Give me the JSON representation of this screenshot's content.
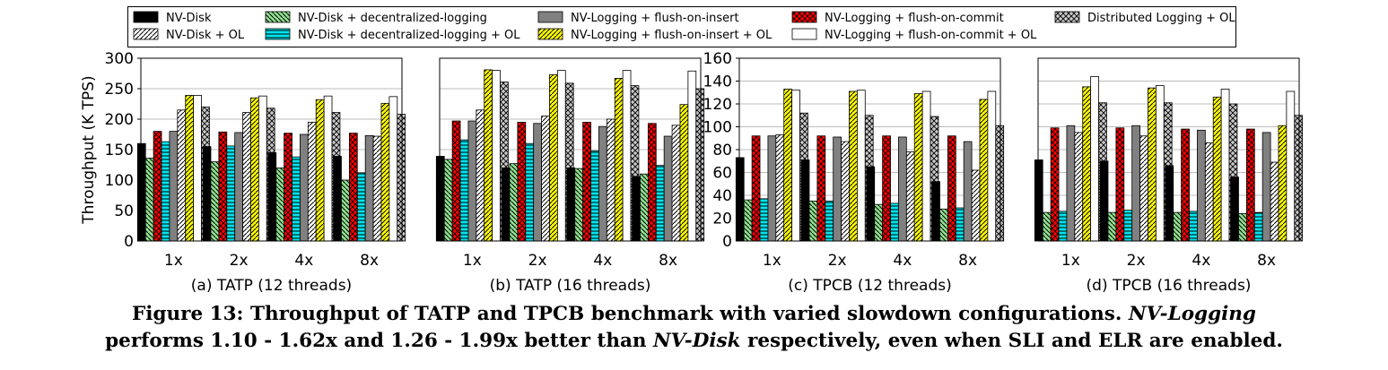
{
  "legend": {
    "items": [
      {
        "label": "NV-Disk",
        "fill": "#000000",
        "pattern": "solid"
      },
      {
        "label": "NV-Disk + OL",
        "fill": "#ffffff",
        "pattern": "diag-r"
      },
      {
        "label": "NV-Disk + decentralized-logging",
        "fill": "#90e090",
        "pattern": "diag-l"
      },
      {
        "label": "NV-Disk + decentralized-logging + OL",
        "fill": "#00e5ee",
        "pattern": "horiz"
      },
      {
        "label": "NV-Logging + flush-on-insert",
        "fill": "#808080",
        "pattern": "solid"
      },
      {
        "label": "NV-Logging + flush-on-insert + OL",
        "fill": "#ffff00",
        "pattern": "diag-r"
      },
      {
        "label": "NV-Logging + flush-on-commit",
        "fill": "#ff0000",
        "pattern": "cross"
      },
      {
        "label": "NV-Logging + flush-on-commit + OL",
        "fill": "#ffffff",
        "pattern": "solid"
      },
      {
        "label": "Distributed Logging + OL",
        "fill": "#c8c8c8",
        "pattern": "cross"
      }
    ]
  },
  "chart_data": [
    {
      "type": "bar",
      "title": "(a) TATP (12 threads)",
      "ylabel": "Throughput (K TPS)",
      "categories": [
        "1x",
        "2x",
        "4x",
        "8x"
      ],
      "ylim": [
        0,
        300
      ],
      "yticks": [
        "0",
        "50",
        "100",
        "150",
        "200",
        "250",
        "300"
      ],
      "grid": true,
      "series": [
        {
          "name": "NV-Disk",
          "values": [
            160,
            155,
            145,
            139
          ]
        },
        {
          "name": "NV-Disk + decentralized-logging",
          "values": [
            136,
            130,
            120,
            100
          ]
        },
        {
          "name": "NV-Logging + flush-on-commit",
          "values": [
            180,
            179,
            177,
            177
          ]
        },
        {
          "name": "NV-Disk + decentralized-logging + OL",
          "values": [
            163,
            156,
            138,
            112
          ]
        },
        {
          "name": "NV-Logging + flush-on-insert",
          "values": [
            180,
            178,
            175,
            173
          ]
        },
        {
          "name": "NV-Disk + OL",
          "values": [
            215,
            211,
            195,
            172
          ]
        },
        {
          "name": "NV-Logging + flush-on-insert + OL",
          "values": [
            239,
            235,
            232,
            226
          ]
        },
        {
          "name": "NV-Logging + flush-on-commit + OL",
          "values": [
            239,
            238,
            238,
            237
          ]
        },
        {
          "name": "Distributed Logging + OL",
          "values": [
            220,
            218,
            211,
            208
          ]
        }
      ]
    },
    {
      "type": "bar",
      "title": "(b) TATP (16 threads)",
      "ylabel": "",
      "categories": [
        "1x",
        "2x",
        "4x",
        "8x"
      ],
      "ylim": [
        0,
        300
      ],
      "yticks": [],
      "grid": true,
      "series": [
        {
          "name": "NV-Disk",
          "values": [
            139,
            120,
            120,
            106
          ]
        },
        {
          "name": "NV-Disk + decentralized-logging",
          "values": [
            134,
            127,
            119,
            110
          ]
        },
        {
          "name": "NV-Logging + flush-on-commit",
          "values": [
            197,
            195,
            195,
            193
          ]
        },
        {
          "name": "NV-Disk + decentralized-logging + OL",
          "values": [
            166,
            160,
            148,
            124
          ]
        },
        {
          "name": "NV-Logging + flush-on-insert",
          "values": [
            197,
            193,
            188,
            172
          ]
        },
        {
          "name": "NV-Disk + OL",
          "values": [
            215,
            205,
            200,
            190
          ]
        },
        {
          "name": "NV-Logging + flush-on-insert + OL",
          "values": [
            281,
            273,
            267,
            224
          ]
        },
        {
          "name": "NV-Logging + flush-on-commit + OL",
          "values": [
            280,
            280,
            280,
            279
          ]
        },
        {
          "name": "Distributed Logging + OL",
          "values": [
            261,
            259,
            255,
            250
          ]
        }
      ]
    },
    {
      "type": "bar",
      "title": "(c) TPCB (12 threads)",
      "ylabel": "",
      "categories": [
        "1x",
        "2x",
        "4x",
        "8x"
      ],
      "ylim": [
        0,
        160
      ],
      "yticks": [
        "0",
        "20",
        "40",
        "60",
        "80",
        "100",
        "120",
        "140",
        "160"
      ],
      "grid": true,
      "series": [
        {
          "name": "NV-Disk",
          "values": [
            73,
            71,
            65,
            52
          ]
        },
        {
          "name": "NV-Disk + decentralized-logging",
          "values": [
            36,
            35,
            32,
            28
          ]
        },
        {
          "name": "NV-Logging + flush-on-commit",
          "values": [
            92,
            92,
            92,
            92
          ]
        },
        {
          "name": "NV-Disk + decentralized-logging + OL",
          "values": [
            37,
            35,
            33,
            29
          ]
        },
        {
          "name": "NV-Logging + flush-on-insert",
          "values": [
            92,
            91,
            91,
            87
          ]
        },
        {
          "name": "NV-Disk + OL",
          "values": [
            93,
            87,
            78,
            62
          ]
        },
        {
          "name": "NV-Logging + flush-on-insert + OL",
          "values": [
            133,
            131,
            129,
            124
          ]
        },
        {
          "name": "NV-Logging + flush-on-commit + OL",
          "values": [
            132,
            132,
            131,
            131
          ]
        },
        {
          "name": "Distributed Logging + OL",
          "values": [
            112,
            110,
            109,
            101
          ]
        }
      ]
    },
    {
      "type": "bar",
      "title": "(d) TPCB (16 threads)",
      "ylabel": "",
      "categories": [
        "1x",
        "2x",
        "4x",
        "8x"
      ],
      "ylim": [
        0,
        160
      ],
      "yticks": [],
      "grid": true,
      "series": [
        {
          "name": "NV-Disk",
          "values": [
            71,
            70,
            66,
            56
          ]
        },
        {
          "name": "NV-Disk + decentralized-logging",
          "values": [
            25,
            25,
            25,
            24
          ]
        },
        {
          "name": "NV-Logging + flush-on-commit",
          "values": [
            99,
            99,
            98,
            98
          ]
        },
        {
          "name": "NV-Disk + decentralized-logging + OL",
          "values": [
            26,
            27,
            26,
            25
          ]
        },
        {
          "name": "NV-Logging + flush-on-insert",
          "values": [
            101,
            101,
            97,
            95
          ]
        },
        {
          "name": "NV-Disk + OL",
          "values": [
            95,
            92,
            86,
            69
          ]
        },
        {
          "name": "NV-Logging + flush-on-insert + OL",
          "values": [
            135,
            134,
            126,
            101
          ]
        },
        {
          "name": "NV-Logging + flush-on-commit + OL",
          "values": [
            144,
            136,
            133,
            131
          ]
        },
        {
          "name": "Distributed Logging + OL",
          "values": [
            121,
            121,
            120,
            110
          ]
        }
      ]
    }
  ],
  "caption": {
    "line1_part1": "Figure 13: Throughput of TATP and TPCB benchmark with varied slowdown configurations. ",
    "line1_part2": "NV-Logging",
    "line2_part1": "performs 1.10 - 1.62x and 1.26 - 1.99x better than ",
    "line2_part2": "NV-Disk",
    "line2_part3": " respectively, even when SLI and ELR are enabled."
  }
}
